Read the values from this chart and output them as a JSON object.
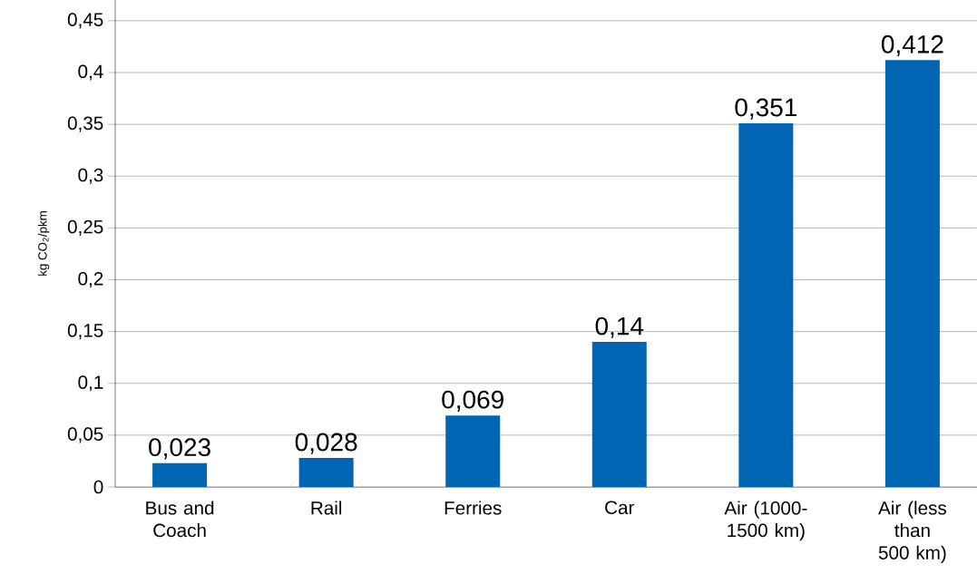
{
  "chart_data": {
    "type": "bar",
    "ylabel": "kg CO$_{2}$/pkm",
    "categories": [
      "Bus and Coach",
      "Rail",
      "Ferries",
      "Car",
      "Air (1000-1500 km)",
      "Air (less than 500 km)"
    ],
    "values": [
      0.023,
      0.028,
      0.069,
      0.14,
      0.351,
      0.412
    ],
    "value_labels": [
      "0,023",
      "0,028",
      "0,069",
      "0,14",
      "0,351",
      "0,412"
    ],
    "color": "#0066b3",
    "ylim": [
      0,
      0.47
    ],
    "yticks": [
      {
        "value": 0,
        "label": "0"
      },
      {
        "value": 0.05,
        "label": "0,05"
      },
      {
        "value": 0.1,
        "label": "0,1"
      },
      {
        "value": 0.15,
        "label": "0,15"
      },
      {
        "value": 0.2,
        "label": "0,2"
      },
      {
        "value": 0.25,
        "label": "0,25"
      },
      {
        "value": 0.3,
        "label": "0,3"
      },
      {
        "value": 0.35,
        "label": "0,35"
      },
      {
        "value": 0.4,
        "label": "0,4"
      },
      {
        "value": 0.45,
        "label": "0,45"
      }
    ],
    "grid": "y"
  }
}
